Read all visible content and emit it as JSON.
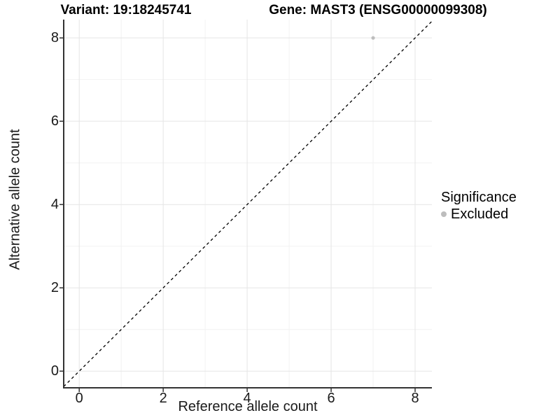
{
  "header": {
    "variant_title": "Variant: 19:18245741",
    "gene_title": "Gene: MAST3 (ENSG00000099308)"
  },
  "chart_data": {
    "type": "scatter",
    "title": "Variant: 19:18245741  /  Gene: MAST3 (ENSG00000099308)",
    "xlabel": "Reference allele count",
    "ylabel": "Alternative allele count",
    "xlim": [
      -0.37,
      8.4
    ],
    "ylim": [
      -0.4,
      8.44
    ],
    "x_ticks": [
      0,
      2,
      4,
      6,
      8
    ],
    "y_ticks": [
      0,
      2,
      4,
      6,
      8
    ],
    "x_minor_ticks": [
      1,
      3,
      5,
      7
    ],
    "y_minor_ticks": [
      1,
      3,
      5,
      7
    ],
    "grid": "major and minor gridlines, white panel",
    "identity_line": {
      "slope": 1,
      "intercept": 0,
      "style": "dashed",
      "color": "#000000"
    },
    "series": [
      {
        "name": "Excluded",
        "color": "#bdbdbd",
        "points": [
          {
            "x": 7,
            "y": 8
          }
        ]
      }
    ],
    "legend": {
      "title": "Significance",
      "position": "right",
      "items": [
        {
          "label": "Excluded",
          "color": "#bdbdbd"
        }
      ]
    }
  },
  "colors": {
    "background": "#ffffff",
    "grid_major": "#e5e5e5",
    "grid_minor": "#f2f2f2",
    "axis_line": "#333333",
    "tick_mark": "#333333",
    "text": "#1a1a1a",
    "point": "#bdbdbd"
  }
}
